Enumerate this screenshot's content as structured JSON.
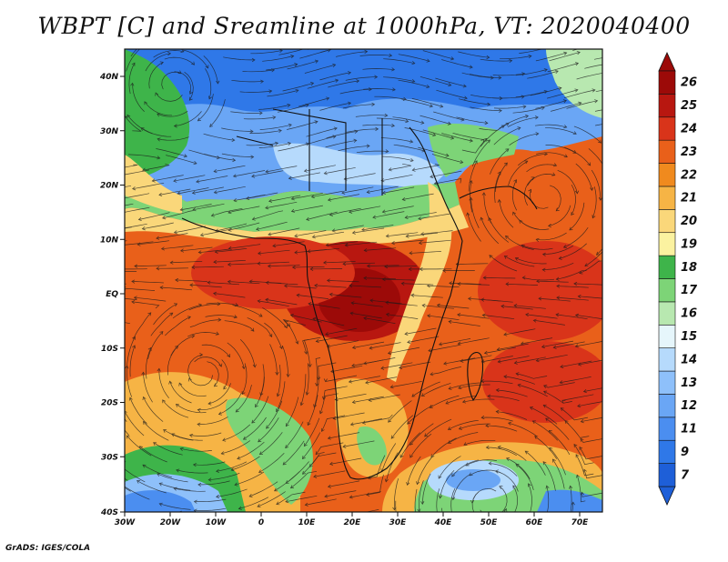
{
  "title": "WBPT [C] and Sreamline at 1000hPa, VT: 2020040400",
  "credit": "GrADS: IGES/COLA",
  "map": {
    "lat_labels": [
      "40N",
      "30N",
      "20N",
      "10N",
      "EQ",
      "10S",
      "20S",
      "30S",
      "40S"
    ],
    "lon_labels": [
      "30W",
      "20W",
      "10W",
      "0",
      "10E",
      "20E",
      "30E",
      "40E",
      "50E",
      "60E",
      "70E"
    ]
  },
  "colorbar": {
    "labels": [
      "7",
      "9",
      "11",
      "12",
      "13",
      "14",
      "15",
      "16",
      "17",
      "18",
      "19",
      "20",
      "21",
      "22",
      "23",
      "24",
      "25",
      "26"
    ],
    "colors": [
      "#1e5fd8",
      "#2f78e8",
      "#4b8ef0",
      "#6aa6f5",
      "#8ec0fa",
      "#b6dafc",
      "#e6f6fb",
      "#b8e8b0",
      "#7dd477",
      "#3eb44a",
      "#fbf2a0",
      "#fad77a",
      "#f6b445",
      "#f08a1e",
      "#e9601a",
      "#d9341a",
      "#b81710",
      "#9c0a08"
    ]
  }
}
